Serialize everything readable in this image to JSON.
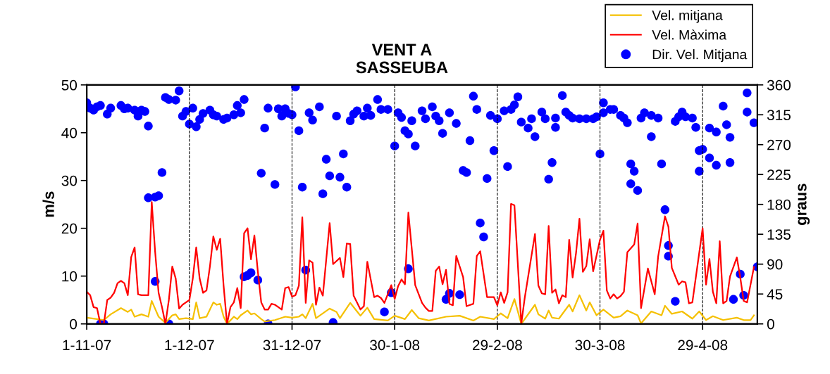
{
  "chart_data": {
    "type": "line",
    "title": "VENT A\nSASSEUBA",
    "ylabel": "m/s",
    "y2label": "graus",
    "xlim": [
      "2007-11-01",
      "2008-05-15"
    ],
    "xticks": [
      {
        "value": "2007-11-01",
        "label": "1-11-07"
      },
      {
        "value": "2007-12-01",
        "label": "1-12-07"
      },
      {
        "value": "2007-12-31",
        "label": "31-12-07"
      },
      {
        "value": "2008-01-30",
        "label": "30-1-08"
      },
      {
        "value": "2008-02-29",
        "label": "29-2-08"
      },
      {
        "value": "2008-03-30",
        "label": "30-3-08"
      },
      {
        "value": "2008-04-29",
        "label": "29-4-08"
      }
    ],
    "ylim": [
      0,
      50
    ],
    "yticks": [
      0,
      10,
      20,
      30,
      40,
      50
    ],
    "y2lim": [
      0,
      360
    ],
    "y2ticks": [
      0,
      45,
      90,
      135,
      180,
      225,
      270,
      315,
      360
    ],
    "grid": "x",
    "legend": "top right",
    "series": [
      {
        "name": "Vel. mitjana",
        "color": "#f5c000",
        "marker": "none",
        "line_style": "solid",
        "x": [
          "2007-11-01",
          "2007-11-04",
          "2007-11-06",
          "2007-11-08",
          "2007-11-11",
          "2007-11-13",
          "2007-11-14",
          "2007-11-15",
          "2007-11-17",
          "2007-11-19",
          "2007-11-20",
          "2007-11-22",
          "2007-11-24",
          "2007-11-26",
          "2007-11-27",
          "2007-11-28",
          "2007-11-30",
          "2007-12-02",
          "2007-12-03",
          "2007-12-04",
          "2007-12-06",
          "2007-12-08",
          "2007-12-09",
          "2007-12-10",
          "2007-12-11",
          "2007-12-12",
          "2007-12-14",
          "2007-12-15",
          "2007-12-16",
          "2007-12-18",
          "2007-12-19",
          "2007-12-20",
          "2007-12-22",
          "2007-12-23",
          "2007-12-26",
          "2007-12-29",
          "2007-12-31",
          "2008-01-02",
          "2008-01-03",
          "2008-01-04",
          "2008-01-06",
          "2008-01-07",
          "2008-01-11",
          "2008-01-13",
          "2008-01-14",
          "2008-01-17",
          "2008-01-20",
          "2008-01-22",
          "2008-01-24",
          "2008-01-28",
          "2008-01-30",
          "2008-02-02",
          "2008-02-04",
          "2008-02-06",
          "2008-02-09",
          "2008-02-14",
          "2008-02-18",
          "2008-02-22",
          "2008-02-24",
          "2008-02-28",
          "2008-03-01",
          "2008-03-03",
          "2008-03-05",
          "2008-03-07",
          "2008-03-11",
          "2008-03-12",
          "2008-03-14",
          "2008-03-15",
          "2008-03-16",
          "2008-03-18",
          "2008-03-21",
          "2008-03-22",
          "2008-03-24",
          "2008-03-26",
          "2008-03-27",
          "2008-03-29",
          "2008-03-31",
          "2008-04-03",
          "2008-04-05",
          "2008-04-07",
          "2008-04-10",
          "2008-04-11",
          "2008-04-14",
          "2008-04-17",
          "2008-04-18",
          "2008-04-20",
          "2008-04-23",
          "2008-04-26",
          "2008-04-28",
          "2008-04-30",
          "2008-05-02",
          "2008-05-05",
          "2008-05-09",
          "2008-05-11",
          "2008-05-13",
          "2008-05-14"
        ],
        "values": [
          1.3,
          1,
          0.8,
          2,
          3.3,
          2.5,
          3,
          1.5,
          2,
          1.5,
          4.8,
          1.5,
          0.2,
          1.8,
          2,
          1,
          1.2,
          1,
          4.5,
          1.2,
          1.5,
          4.5,
          4,
          4.2,
          1.5,
          0,
          1.5,
          1,
          1.8,
          2.8,
          2,
          2.2,
          1,
          0.5,
          0.8,
          1.5,
          1.3,
          1.5,
          2,
          1.2,
          4.2,
          1.2,
          3.2,
          2.5,
          1.2,
          4.4,
          1.7,
          3.4,
          1,
          0.7,
          1.7,
          1,
          2.9,
          1.2,
          0.7,
          1.5,
          1.7,
          0.7,
          1.5,
          1,
          2.2,
          1.2,
          5.2,
          0,
          4,
          2,
          1.1,
          2.8,
          1.3,
          1.1,
          4,
          2.6,
          6,
          2.8,
          4.5,
          1.8,
          3,
          1.3,
          1.6,
          2.8,
          1.8,
          0.1,
          2.6,
          1.8,
          3.8,
          2.1,
          2.6,
          1.1,
          2.6,
          0.8,
          1.6,
          0.8,
          1.3,
          0.8,
          0.8,
          1.8
        ]
      },
      {
        "name": "Vel. Màxima",
        "color": "#ff0000",
        "marker": "none",
        "line_style": "solid",
        "x": [
          "2007-11-01",
          "2007-11-02",
          "2007-11-03",
          "2007-11-04",
          "2007-11-05",
          "2007-11-06",
          "2007-11-07",
          "2007-11-08",
          "2007-11-09",
          "2007-11-10",
          "2007-11-11",
          "2007-11-12",
          "2007-11-13",
          "2007-11-14",
          "2007-11-15",
          "2007-11-16",
          "2007-11-17",
          "2007-11-19",
          "2007-11-20",
          "2007-11-21",
          "2007-11-22",
          "2007-11-23",
          "2007-11-24",
          "2007-11-25",
          "2007-11-26",
          "2007-11-27",
          "2007-11-28",
          "2007-11-29",
          "2007-11-30",
          "2007-12-01",
          "2007-12-02",
          "2007-12-03",
          "2007-12-04",
          "2007-12-05",
          "2007-12-06",
          "2007-12-07",
          "2007-12-08",
          "2007-12-09",
          "2007-12-10",
          "2007-12-11",
          "2007-12-12",
          "2007-12-13",
          "2007-12-14",
          "2007-12-15",
          "2007-12-16",
          "2007-12-17",
          "2007-12-18",
          "2007-12-19",
          "2007-12-20",
          "2007-12-21",
          "2007-12-22",
          "2007-12-23",
          "2007-12-24",
          "2007-12-25",
          "2007-12-26",
          "2007-12-27",
          "2007-12-28",
          "2007-12-29",
          "2007-12-30",
          "2007-12-31",
          "2008-01-01",
          "2008-01-02",
          "2008-01-03",
          "2008-01-04",
          "2008-01-05",
          "2008-01-06",
          "2008-01-07",
          "2008-01-08",
          "2008-01-09",
          "2008-01-11",
          "2008-01-12",
          "2008-01-14",
          "2008-01-15",
          "2008-01-16",
          "2008-01-17",
          "2008-01-18",
          "2008-01-20",
          "2008-01-21",
          "2008-01-22",
          "2008-01-24",
          "2008-01-25",
          "2008-01-26",
          "2008-01-27",
          "2008-01-29",
          "2008-01-30",
          "2008-01-31",
          "2008-02-01",
          "2008-02-02",
          "2008-02-03",
          "2008-02-05",
          "2008-02-07",
          "2008-02-08",
          "2008-02-09",
          "2008-02-10",
          "2008-02-11",
          "2008-02-12",
          "2008-02-13",
          "2008-02-14",
          "2008-02-15",
          "2008-02-16",
          "2008-02-17",
          "2008-02-19",
          "2008-02-20",
          "2008-02-22",
          "2008-02-23",
          "2008-02-24",
          "2008-02-26",
          "2008-02-28",
          "2008-02-29",
          "2008-03-01",
          "2008-03-02",
          "2008-03-03",
          "2008-03-04",
          "2008-03-05",
          "2008-03-07",
          "2008-03-08",
          "2008-03-11",
          "2008-03-12",
          "2008-03-13",
          "2008-03-14",
          "2008-03-15",
          "2008-03-16",
          "2008-03-17",
          "2008-03-18",
          "2008-03-19",
          "2008-03-20",
          "2008-03-21",
          "2008-03-22",
          "2008-03-23",
          "2008-03-24",
          "2008-03-25",
          "2008-03-26",
          "2008-03-27",
          "2008-03-28",
          "2008-03-30",
          "2008-03-31",
          "2008-04-01",
          "2008-04-02",
          "2008-04-03",
          "2008-04-04",
          "2008-04-05",
          "2008-04-06",
          "2008-04-07",
          "2008-04-09",
          "2008-04-10",
          "2008-04-11",
          "2008-04-13",
          "2008-04-15",
          "2008-04-16",
          "2008-04-18",
          "2008-04-19",
          "2008-04-20",
          "2008-04-22",
          "2008-04-23",
          "2008-04-24",
          "2008-04-25",
          "2008-04-26",
          "2008-04-29",
          "2008-04-30",
          "2008-05-01",
          "2008-05-02",
          "2008-05-03",
          "2008-05-04",
          "2008-05-05",
          "2008-05-06",
          "2008-05-07",
          "2008-05-09",
          "2008-05-10",
          "2008-05-11",
          "2008-05-12",
          "2008-05-14"
        ],
        "values": [
          6.7,
          6.0,
          3.5,
          3.3,
          0,
          0,
          5.0,
          5.5,
          6.5,
          8.5,
          9,
          8.5,
          6,
          14,
          16,
          6.2,
          6,
          6,
          25.5,
          15,
          6.5,
          3.5,
          0,
          5,
          12,
          9.5,
          3.2,
          4,
          4.5,
          5,
          9.5,
          16,
          9.5,
          6.5,
          7,
          12,
          18.3,
          15.5,
          17.8,
          8,
          0,
          3.5,
          4.5,
          7.5,
          3.3,
          19,
          20,
          13.5,
          18.5,
          11,
          4.5,
          3,
          3,
          4.2,
          4,
          3.5,
          3,
          7.5,
          7.7,
          5.7,
          6,
          8,
          22.3,
          4.4,
          13.3,
          12.8,
          4,
          7.6,
          5.9,
          21.1,
          12.5,
          13.8,
          9.8,
          16.8,
          16.7,
          5.9,
          3,
          3.7,
          13,
          5.6,
          5.9,
          5.4,
          4.4,
          8.1,
          5.2,
          7.9,
          9.3,
          8.3,
          23.3,
          8.1,
          4.4,
          3.4,
          2.7,
          2.7,
          11.1,
          12,
          8.3,
          11.3,
          4.2,
          3.9,
          14.2,
          9.8,
          3.7,
          4.2,
          14.2,
          15.2,
          5.6,
          5.6,
          3.9,
          6.6,
          4.4,
          6.6,
          25.1,
          24.8,
          0,
          5.4,
          18.8,
          8,
          6.4,
          6.2,
          20.5,
          6.5,
          7.2,
          4.3,
          6,
          5.6,
          17.6,
          9.7,
          14.8,
          22,
          10.9,
          12.1,
          17.7,
          11,
          17.6,
          19.5,
          7,
          5.3,
          6.2,
          5.3,
          5.8,
          6.7,
          15,
          16.6,
          21,
          3.3,
          11.6,
          6.2,
          14.1,
          22.5,
          20.3,
          11.7,
          8.2,
          8.9,
          8.7,
          4.3,
          4.5,
          20,
          8.2,
          13.6,
          6.7,
          4.3,
          17.3,
          4.3,
          4.8,
          9.9,
          13.9,
          9.7,
          4.8,
          4.5,
          11.9
        ]
      },
      {
        "name": "Dir. Vel. Mitjana",
        "type": "scatter",
        "axis": "y2",
        "color": "#0000ff",
        "marker": "circle",
        "x": [
          "2007-11-01",
          "2007-11-02",
          "2007-11-03",
          "2007-11-04",
          "2007-11-05",
          "2007-11-05",
          "2007-11-06",
          "2007-11-07",
          "2007-11-08",
          "2007-11-11",
          "2007-11-12",
          "2007-11-13",
          "2007-11-15",
          "2007-11-16",
          "2007-11-17",
          "2007-11-18",
          "2007-11-19",
          "2007-11-19",
          "2007-11-21",
          "2007-11-21",
          "2007-11-22",
          "2007-11-23",
          "2007-11-24",
          "2007-11-25",
          "2007-11-25",
          "2007-11-27",
          "2007-11-28",
          "2007-11-29",
          "2007-11-30",
          "2007-12-01",
          "2007-12-02",
          "2007-12-03",
          "2007-12-04",
          "2007-12-05",
          "2007-12-07",
          "2007-12-08",
          "2007-12-09",
          "2007-12-11",
          "2007-12-12",
          "2007-12-14",
          "2007-12-15",
          "2007-12-16",
          "2007-12-17",
          "2007-12-17",
          "2007-12-18",
          "2007-12-19",
          "2007-12-21",
          "2007-12-22",
          "2007-12-23",
          "2007-12-24",
          "2007-12-24",
          "2007-12-26",
          "2007-12-27",
          "2007-12-28",
          "2007-12-29",
          "2007-12-30",
          "2007-12-31",
          "2008-01-01",
          "2008-01-02",
          "2008-01-03",
          "2008-01-04",
          "2008-01-05",
          "2008-01-06",
          "2008-01-08",
          "2008-01-09",
          "2008-01-10",
          "2008-01-11",
          "2008-01-12",
          "2008-01-13",
          "2008-01-14",
          "2008-01-15",
          "2008-01-16",
          "2008-01-17",
          "2008-01-18",
          "2008-01-19",
          "2008-01-21",
          "2008-01-22",
          "2008-01-23",
          "2008-01-25",
          "2008-01-26",
          "2008-01-27",
          "2008-01-28",
          "2008-01-29",
          "2008-01-30",
          "2008-01-31",
          "2008-02-01",
          "2008-02-02",
          "2008-02-03",
          "2008-02-03",
          "2008-02-04",
          "2008-02-05",
          "2008-02-07",
          "2008-02-08",
          "2008-02-10",
          "2008-02-11",
          "2008-02-12",
          "2008-02-13",
          "2008-02-14",
          "2008-02-15",
          "2008-02-15",
          "2008-02-17",
          "2008-02-18",
          "2008-02-19",
          "2008-02-20",
          "2008-02-21",
          "2008-02-22",
          "2008-02-23",
          "2008-02-24",
          "2008-02-25",
          "2008-02-26",
          "2008-02-27",
          "2008-02-28",
          "2008-02-29",
          "2008-03-02",
          "2008-03-03",
          "2008-03-04",
          "2008-03-05",
          "2008-03-06",
          "2008-03-07",
          "2008-03-09",
          "2008-03-10",
          "2008-03-11",
          "2008-03-13",
          "2008-03-14",
          "2008-03-15",
          "2008-03-16",
          "2008-03-17",
          "2008-03-17",
          "2008-03-19",
          "2008-03-20",
          "2008-03-21",
          "2008-03-22",
          "2008-03-24",
          "2008-03-26",
          "2008-03-28",
          "2008-03-29",
          "2008-03-30",
          "2008-03-31",
          "2008-03-31",
          "2008-04-02",
          "2008-04-03",
          "2008-04-05",
          "2008-04-06",
          "2008-04-07",
          "2008-04-08",
          "2008-04-08",
          "2008-04-09",
          "2008-04-10",
          "2008-04-11",
          "2008-04-12",
          "2008-04-14",
          "2008-04-14",
          "2008-04-16",
          "2008-04-17",
          "2008-04-18",
          "2008-04-19",
          "2008-04-19",
          "2008-04-21",
          "2008-04-21",
          "2008-04-22",
          "2008-04-23",
          "2008-04-24",
          "2008-04-26",
          "2008-04-27",
          "2008-04-28",
          "2008-04-28",
          "2008-04-29",
          "2008-05-01",
          "2008-05-01",
          "2008-05-03",
          "2008-05-03",
          "2008-05-05",
          "2008-05-06",
          "2008-05-07",
          "2008-05-07",
          "2008-05-08",
          "2008-05-10",
          "2008-05-11",
          "2008-05-12",
          "2008-05-12",
          "2008-05-14",
          "2008-05-15"
        ],
        "values": [
          333,
          325,
          322,
          327,
          329,
          0,
          0,
          316,
          325,
          329,
          324,
          325,
          322,
          313,
          322,
          320,
          298,
          190,
          191,
          64,
          193,
          228,
          341,
          0,
          338,
          337,
          351,
          313,
          320,
          301,
          325,
          297,
          308,
          317,
          322,
          315,
          313,
          308,
          310,
          315,
          329,
          318,
          338,
          71,
          73,
          77,
          66,
          227,
          295,
          0,
          325,
          210,
          324,
          313,
          324,
          317,
          315,
          357,
          291,
          206,
          81,
          318,
          307,
          327,
          196,
          248,
          223,
          2,
          313,
          221,
          256,
          206,
          306,
          316,
          321,
          313,
          325,
          314,
          338,
          323,
          18,
          323,
          47,
          268,
          318,
          311,
          291,
          286,
          83,
          306,
          268,
          321,
          309,
          327,
          313,
          306,
          287,
          37,
          46,
          318,
          302,
          44,
          231,
          228,
          276,
          343,
          323,
          152,
          131,
          219,
          314,
          261,
          309,
          321,
          237,
          323,
          330,
          342,
          304,
          295,
          309,
          282,
          319,
          309,
          218,
          243,
          310,
          296,
          344,
          319,
          314,
          310,
          309,
          309,
          309,
          312,
          256,
          333,
          318,
          323,
          323,
          314,
          310,
          303,
          241,
          211,
          230,
          201,
          310,
          318,
          282,
          314,
          310,
          241,
          172,
          118,
          102,
          34,
          305,
          312,
          319,
          312,
          310,
          296,
          230,
          261,
          263,
          295,
          250,
          239,
          289,
          328,
          300,
          281,
          243,
          37,
          75,
          43,
          348,
          319,
          303,
          86
        ]
      }
    ]
  }
}
